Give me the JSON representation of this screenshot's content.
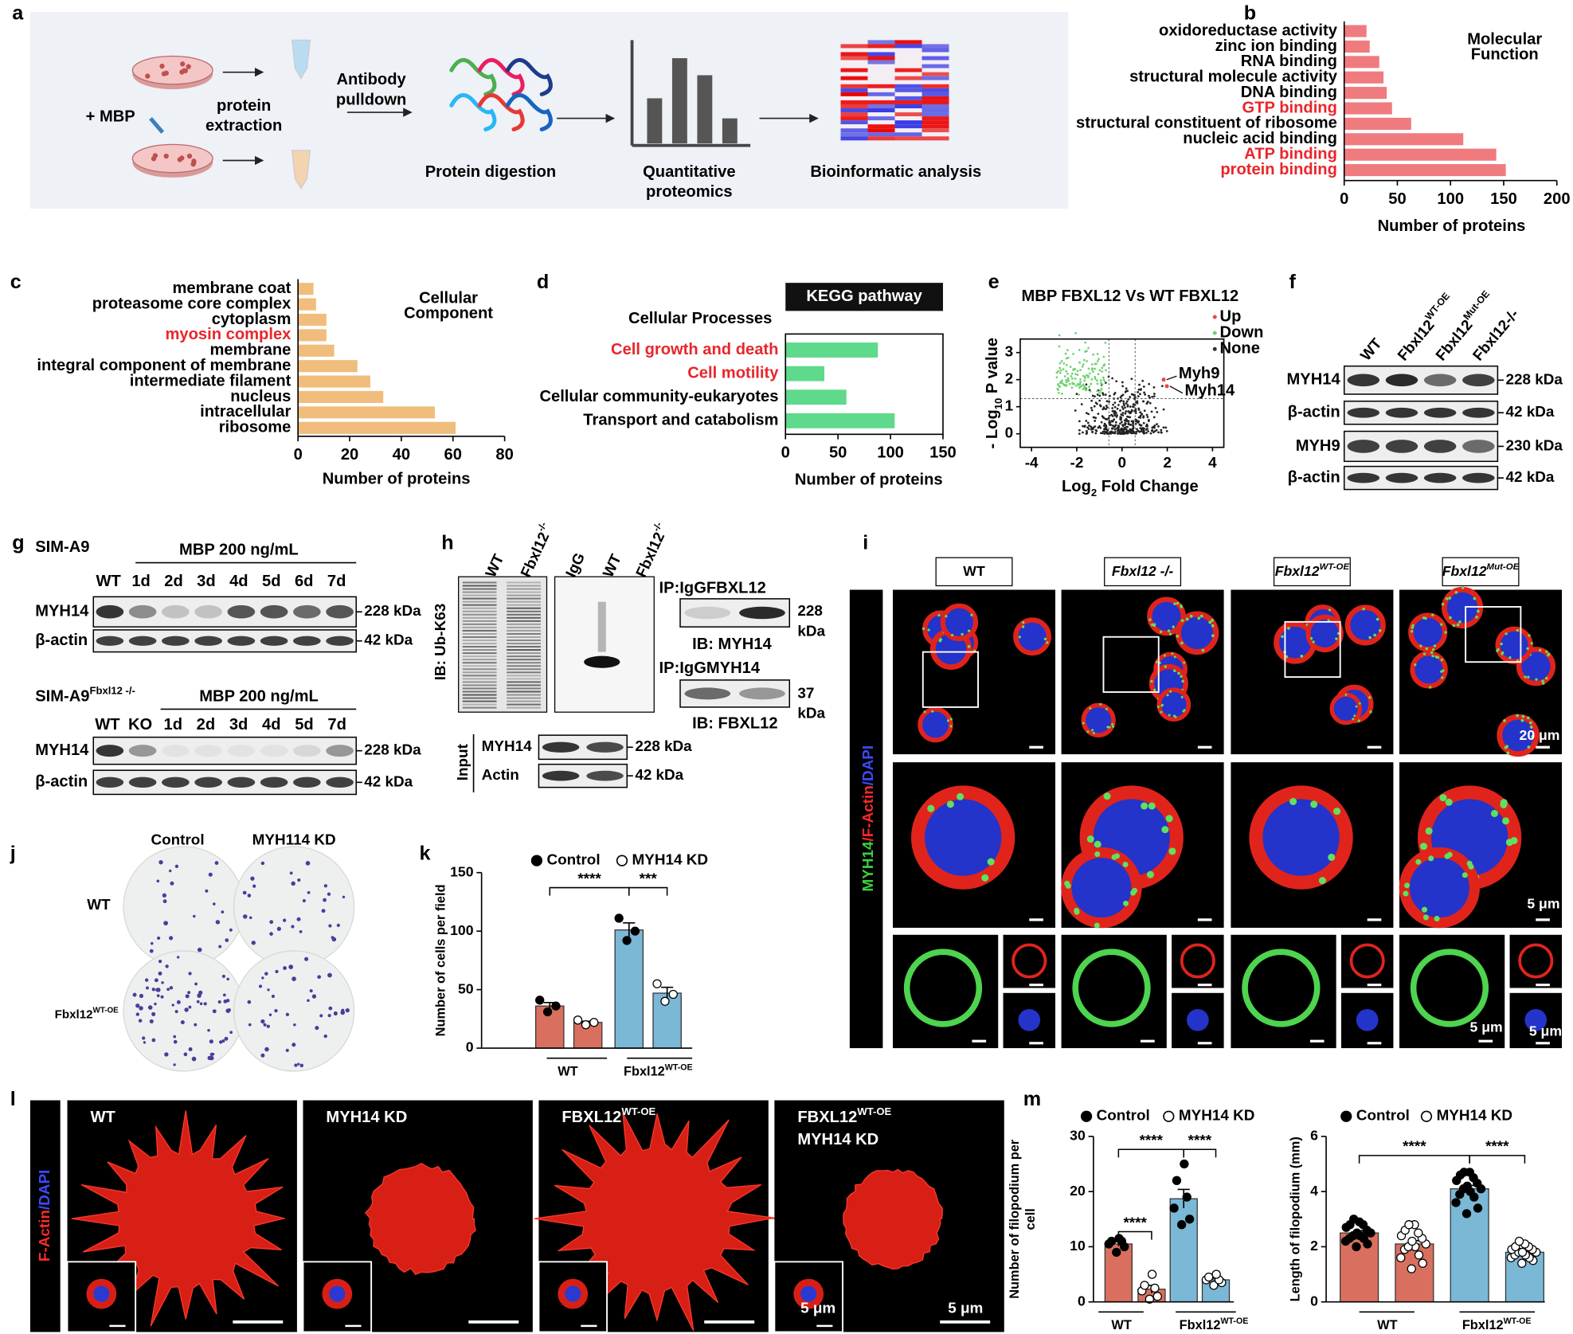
{
  "panel_labels": [
    "a",
    "b",
    "c",
    "d",
    "e",
    "f",
    "g",
    "h",
    "i",
    "j",
    "k",
    "l",
    "m"
  ],
  "workflow": {
    "treatment": "+ MBP",
    "extraction": [
      "protein",
      "extraction"
    ],
    "pulldown": [
      "Antibody",
      "pulldown"
    ],
    "digestion": "Protein digestion",
    "proteomics": [
      "Quantitative",
      "proteomics"
    ],
    "analysis": "Bioinformatic analysis"
  },
  "chart_data": [
    {
      "type": "hbar",
      "categories": [
        "oxidoreductase activity",
        "zinc ion binding",
        "RNA binding",
        "structural molecule activity",
        "DNA binding",
        "GTP binding",
        "structural constituent of ribosome",
        "nucleic acid binding",
        "ATP binding",
        "protein binding"
      ],
      "values": [
        21,
        24,
        33,
        37,
        40,
        45,
        63,
        112,
        143,
        152
      ],
      "label_colors": [
        "#000",
        "#000",
        "#000",
        "#000",
        "#000",
        "#e8262b",
        "#000",
        "#000",
        "#e8262b",
        "#e8262b"
      ],
      "color": "#f07b7e",
      "xlim": [
        0,
        200
      ],
      "xticks": [
        0,
        50,
        100,
        150,
        200
      ],
      "x_label": "Number of proteins",
      "annotation": [
        "Molecular",
        "Function"
      ]
    },
    {
      "type": "hbar",
      "categories": [
        "membrane coat",
        "proteasome core complex",
        "cytoplasm",
        "myosin complex",
        "membrane",
        "integral component of membrane",
        "intermediate filament",
        "nucleus",
        "intracellular",
        "ribosome"
      ],
      "values": [
        6,
        7,
        11,
        11,
        14,
        23,
        28,
        33,
        53,
        61
      ],
      "label_colors": [
        "#000",
        "#000",
        "#000",
        "#e8262b",
        "#000",
        "#000",
        "#000",
        "#000",
        "#000",
        "#000"
      ],
      "color": "#f0bd7c",
      "xlim": [
        0,
        80
      ],
      "xticks": [
        0,
        20,
        40,
        60,
        80
      ],
      "x_label": "Number of proteins",
      "annotation": [
        "Cellular",
        "Component"
      ]
    },
    {
      "type": "hbar",
      "title": "KEGG pathway",
      "subtitle": "Cellular Processes",
      "categories": [
        "Cell growth and death",
        "Cell motility",
        "Cellular community-eukaryotes",
        "Transport and catabolism"
      ],
      "values": [
        88,
        37,
        58,
        104
      ],
      "label_colors": [
        "#e8262b",
        "#e8262b",
        "#000",
        "#000"
      ],
      "color": "#5fd98b",
      "xlim": [
        0,
        150
      ],
      "xticks": [
        0,
        50,
        100,
        150
      ],
      "x_label": "Number of proteins"
    },
    {
      "type": "volcano",
      "title": "MBP FBXL12 Vs WT FBXL12",
      "y_label": [
        "- Log",
        "10",
        " P value"
      ],
      "x_label": [
        "Log",
        "2",
        " Fold Change"
      ],
      "xlim": [
        -4.5,
        4.5
      ],
      "ylim": [
        -0.5,
        3.5
      ],
      "xticks": [
        -4,
        -2,
        0,
        2,
        4
      ],
      "yticks": [
        0,
        1,
        2,
        3
      ],
      "legend": [
        {
          "name": "Up",
          "color": "#e8474b"
        },
        {
          "name": "Down",
          "color": "#6fd36f"
        },
        {
          "name": "None",
          "color": "#333333"
        }
      ],
      "x_thresholds": [
        -0.58,
        0.58
      ],
      "y_threshold": 1.3,
      "highlight": {
        "names": [
          "Myh9",
          "Myh14"
        ],
        "x": [
          1.84,
          1.98
        ],
        "y": [
          2.0,
          1.76
        ]
      }
    },
    {
      "type": "dotbar",
      "categories": [
        {
          "text": "WT"
        },
        {
          "text": "Fbxl12",
          "sup": "WT-OE"
        }
      ],
      "group_colors": [
        "#d9705f",
        "#7ab8d6"
      ],
      "series": [
        {
          "name": "Control",
          "marker": "filled",
          "values": [
            36,
            101
          ],
          "errors": [
            3,
            6
          ],
          "points": [
            [
              31,
              36,
              41
            ],
            [
              92,
              100,
              111
            ]
          ]
        },
        {
          "name": "MYH14 KD",
          "marker": "open",
          "values": [
            22,
            47
          ],
          "errors": [
            1,
            5
          ],
          "points": [
            [
              20,
              22,
              24
            ],
            [
              40,
              46,
              55
            ]
          ]
        }
      ],
      "ylim": [
        0,
        150
      ],
      "yticks": [
        0,
        50,
        100,
        150
      ],
      "y_label": [
        "Number of cells per field"
      ],
      "annotations": [
        "****",
        "***"
      ]
    },
    {
      "type": "dotbar",
      "categories": [
        {
          "text": "WT"
        },
        {
          "text": "Fbxl12",
          "sup": "WT-OE"
        }
      ],
      "group_colors": [
        "#d9705f",
        "#7ab8d6"
      ],
      "series": [
        {
          "name": "Control",
          "marker": "filled",
          "values": [
            10.5,
            18.7
          ],
          "errors": [
            0.4,
            1.7
          ],
          "points": [
            [
              9,
              10,
              10.5,
              11,
              11,
              11.5
            ],
            [
              14,
              15,
              17,
              19,
              22,
              25
            ]
          ]
        },
        {
          "name": "MYH14 KD",
          "marker": "open",
          "values": [
            2.3,
            4
          ],
          "errors": [
            0.7,
            0.3
          ],
          "points": [
            [
              0.5,
              1,
              2,
              2.5,
              3,
              5
            ],
            [
              3,
              3.5,
              4,
              4,
              4.5,
              5
            ]
          ]
        }
      ],
      "ylim": [
        0,
        30
      ],
      "yticks": [
        0,
        10,
        20,
        30
      ],
      "y_label": [
        "Number of filopodium per",
        "cell"
      ],
      "annotations": [
        "****",
        "****",
        "****"
      ]
    },
    {
      "type": "dotbar",
      "categories": [
        {
          "text": "WT"
        },
        {
          "text": "Fbxl12",
          "sup": "WT-OE"
        }
      ],
      "group_colors": [
        "#d9705f",
        "#7ab8d6"
      ],
      "series": [
        {
          "name": "Control",
          "marker": "filled",
          "values": [
            2.5,
            4.1
          ],
          "errors": [
            0.08,
            0.12
          ],
          "points": [
            [
              2.0,
              2.1,
              2.2,
              2.3,
              2.3,
              2.4,
              2.4,
              2.5,
              2.5,
              2.6,
              2.7,
              2.8,
              2.8,
              2.9,
              3.0
            ],
            [
              3.2,
              3.4,
              3.6,
              3.8,
              3.9,
              4.0,
              4.1,
              4.1,
              4.2,
              4.3,
              4.4,
              4.5,
              4.6,
              4.7,
              4.7
            ]
          ]
        },
        {
          "name": "MYH14 KD",
          "marker": "open",
          "values": [
            2.1,
            1.8
          ],
          "errors": [
            0.12,
            0.06
          ],
          "points": [
            [
              1.2,
              1.4,
              1.6,
              1.7,
              1.9,
              2.0,
              2.0,
              2.1,
              2.2,
              2.3,
              2.4,
              2.5,
              2.6,
              2.8,
              2.8
            ],
            [
              1.4,
              1.5,
              1.6,
              1.6,
              1.7,
              1.7,
              1.8,
              1.8,
              1.8,
              1.9,
              1.9,
              2.0,
              2.0,
              2.1,
              2.2
            ]
          ]
        }
      ],
      "ylim": [
        0,
        6
      ],
      "yticks": [
        0,
        2,
        4,
        6
      ],
      "y_label": [
        "Length of filopodium (mm)"
      ],
      "annotations": [
        "****",
        "****"
      ]
    }
  ],
  "blot_f": {
    "lanes": [
      {
        "text": "WT"
      },
      {
        "text": "Fbxl12",
        "sup": "WT-OE"
      },
      {
        "text": "Fbxl12",
        "sup": "Mut-OE"
      },
      {
        "text": "Fbxl12-/-"
      }
    ],
    "rows": [
      "MYH14",
      "β-actin",
      "MYH9",
      "β-actin"
    ],
    "sizes": [
      "228 kDa",
      "42 kDa",
      "230 kDa",
      "42 kDa"
    ]
  },
  "blot_g": {
    "cell_line": "SIM-A9",
    "treatment": "MBP 200 ng/mL",
    "lanes": [
      "WT",
      "1d",
      "2d",
      "3d",
      "4d",
      "5d",
      "6d",
      "7d"
    ],
    "rows": [
      "MYH14",
      "β-actin"
    ],
    "sizes": [
      "228 kDa",
      "42 kDa"
    ],
    "cell_line_ko": {
      "text": "SIM-A9",
      "sup": "Fbxl12 -/-"
    },
    "treatment_ko": "MBP 200 ng/mL",
    "lanes_ko": [
      "WT",
      "KO",
      "1d",
      "2d",
      "3d",
      "4d",
      "5d",
      "7d"
    ],
    "rows_ko": [
      "MYH14",
      "β-actin"
    ],
    "sizes_ko": [
      "228 kDa",
      "42 kDa"
    ]
  },
  "blot_h": {
    "lanes": [
      {
        "text": "WT"
      },
      {
        "text": "Fbxl12",
        "sup": "-/-"
      },
      {
        "text": "IgG"
      },
      {
        "text": "WT"
      },
      {
        "text": "Fbxl12",
        "sup": "-/-"
      }
    ],
    "ib_left": "IB: Ub-K63",
    "ip1": [
      "IP:",
      "IgG",
      "FBXL12"
    ],
    "ip1_size": [
      "228",
      "kDa"
    ],
    "ib1": "IB: MYH14",
    "ip2": [
      "IP:",
      "IgG",
      "MYH14"
    ],
    "ip2_size": [
      "37",
      "kDa"
    ],
    "ib2": "IB: FBXL12",
    "input": "Input",
    "input_rows": [
      "MYH14",
      "Actin"
    ],
    "input_sizes": [
      "228 kDa",
      "42 kDa"
    ]
  },
  "images_i": {
    "columns": [
      {
        "text": "WT"
      },
      {
        "text": "Fbxl12 -/-"
      },
      {
        "text": "Fbxl12",
        "sup": "WT-OE"
      },
      {
        "text": "Fbxl12",
        "sup": "Mut-OE"
      }
    ],
    "stain": [
      "MYH14",
      "/F-Actin",
      "/DAPI"
    ],
    "scale_bars": [
      "20 μm",
      "5 μm",
      "5 μm",
      "5 μm"
    ]
  },
  "images_j": {
    "columns": [
      "Control",
      "MYH114 KD"
    ],
    "rows": [
      {
        "text": "WT"
      },
      {
        "text": "Fbxl12",
        "sup": "WT-OE"
      }
    ]
  },
  "images_l": {
    "stain": [
      "F-Actin",
      "/DAPI"
    ],
    "panels": [
      [
        {
          "text": "WT"
        }
      ],
      [
        {
          "text": "MYH14 KD"
        }
      ],
      [
        {
          "text": "FBXL12",
          "sup": "WT-OE"
        }
      ],
      [
        {
          "text": "FBXL12",
          "sup": "WT-OE"
        },
        {
          "text": "MYH14 KD"
        }
      ]
    ],
    "scale_bars": [
      "5 μm",
      "5 μm"
    ]
  }
}
